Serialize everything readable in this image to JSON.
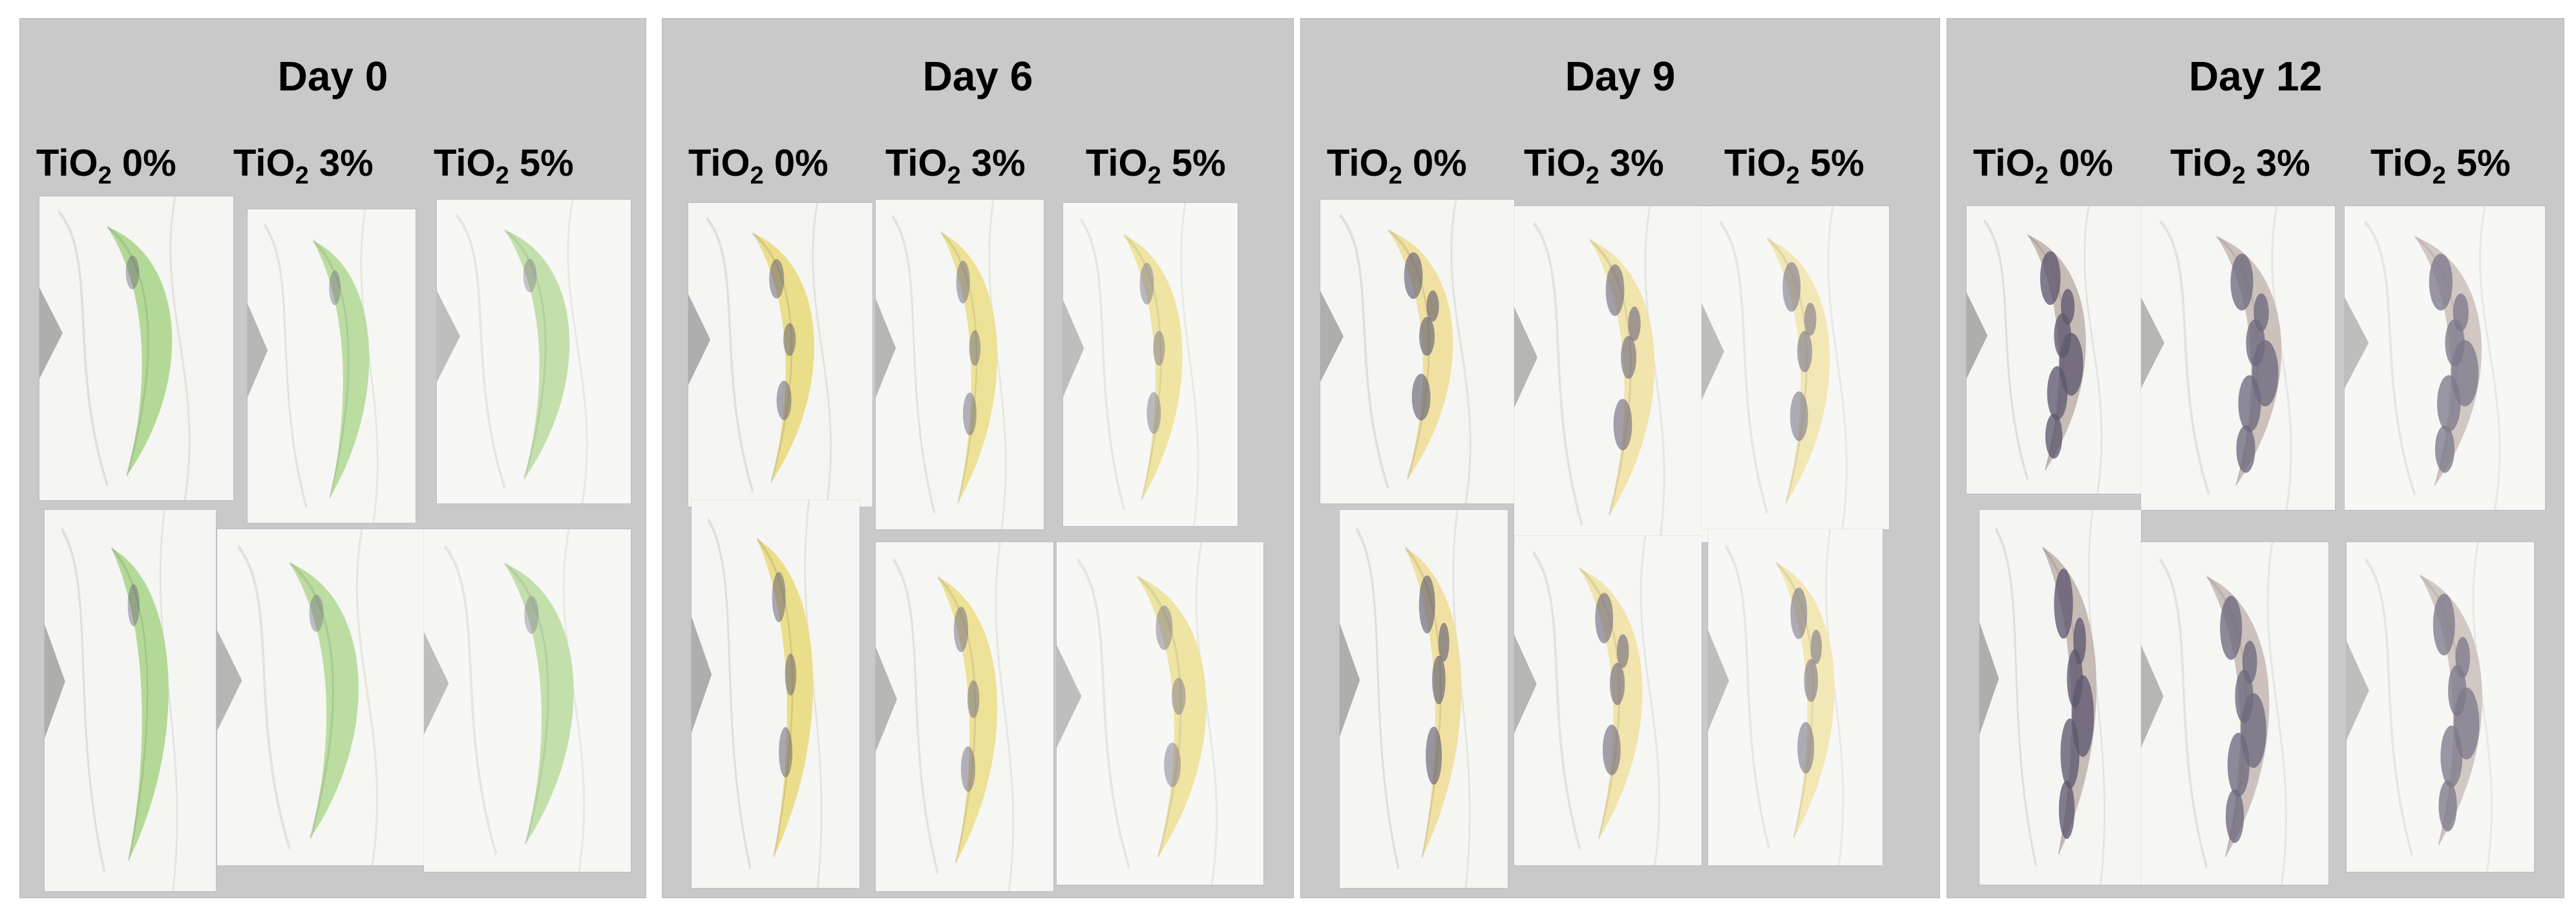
{
  "figure": {
    "col_prefix": "TiO",
    "col_sub": "2",
    "panels": [
      {
        "day": "Day 0",
        "cols": [
          "0%",
          "3%",
          "5%"
        ]
      },
      {
        "day": "Day 6",
        "cols": [
          "0%",
          "3%",
          "5%"
        ]
      },
      {
        "day": "Day 9",
        "cols": [
          "0%",
          "3%",
          "5%"
        ]
      },
      {
        "day": "Day 12",
        "cols": [
          "0%",
          "3%",
          "5%"
        ]
      }
    ]
  },
  "colors": {
    "panel_bg": "#c9c9c9",
    "day0_fruit": "#9fcf7a",
    "day6_fruit": "#e6d56a",
    "day9_fruit": "#ecd989",
    "day12_fruit": "#b7a8a0",
    "cloth": "#f3f3f1",
    "spot": "#3b3550"
  }
}
